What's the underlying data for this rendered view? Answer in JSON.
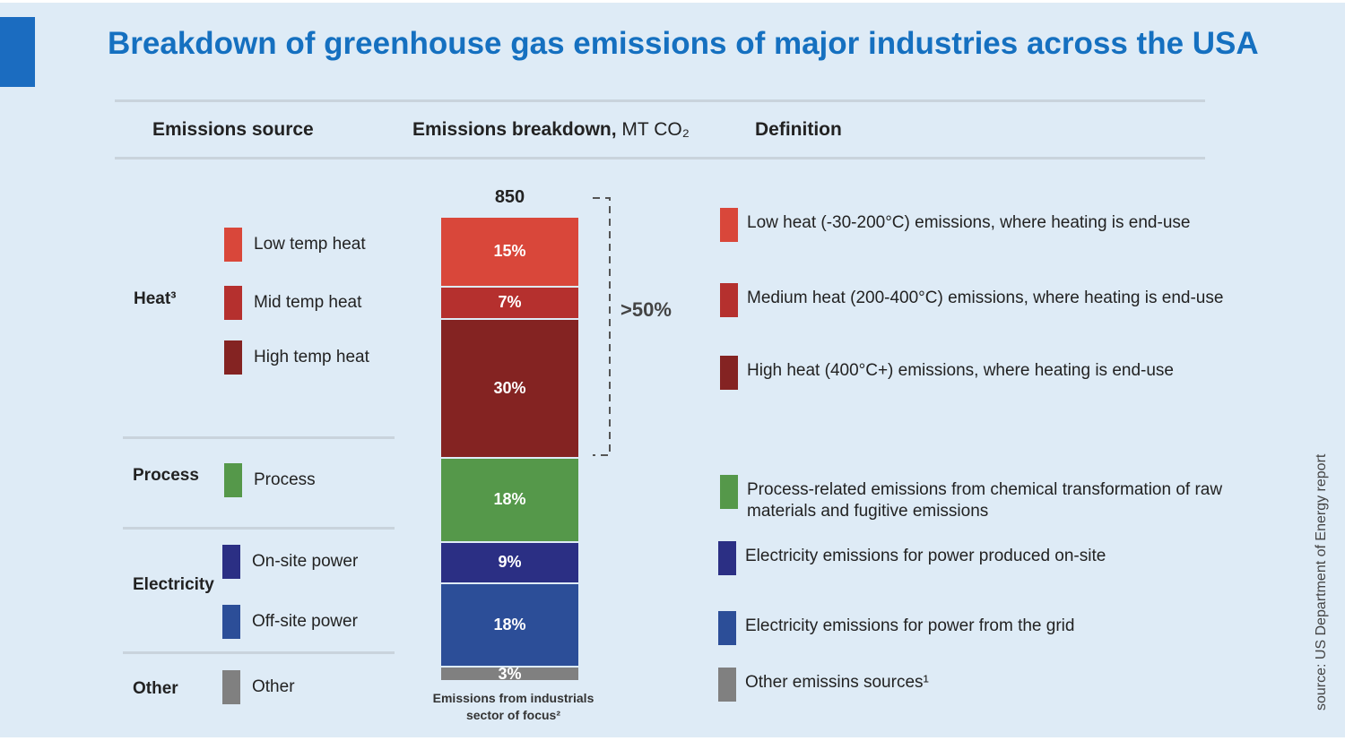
{
  "title": "Breakdown of greenhouse gas emissions of major industries across the USA",
  "headers": {
    "source": "Emissions source",
    "breakdown_bold": "Emissions breakdown,",
    "breakdown_unit": " MT CO₂",
    "definition": "Definition"
  },
  "categories": {
    "heat": "Heat³",
    "process": "Process",
    "electricity": "Electricity",
    "other": "Other"
  },
  "chart_data": {
    "type": "bar",
    "stacked": true,
    "total": "850",
    "unit": "MT CO₂",
    "caption": "Emissions from industrials sector of focus²",
    "bracket_label": ">50%",
    "segments": [
      {
        "name": "Low temp heat",
        "value": 15,
        "label": "15%",
        "color": "#d9473a",
        "definition": "Low heat (-30-200°C) emissions, where heating is end-use"
      },
      {
        "name": "Mid temp heat",
        "value": 7,
        "label": "7%",
        "color": "#b5302e",
        "definition": "Medium heat (200-400°C) emissions, where heating is end-use"
      },
      {
        "name": "High temp heat",
        "value": 30,
        "label": "30%",
        "color": "#842322",
        "definition": "High heat (400°C+) emissions, where heating is end-use"
      },
      {
        "name": "Process",
        "value": 18,
        "label": "18%",
        "color": "#55984a",
        "definition": "Process-related emissions from chemical transformation of raw materials and fugitive emissions"
      },
      {
        "name": "On-site power",
        "value": 9,
        "label": "9%",
        "color": "#2b2f84",
        "definition": "Electricity emissions for power produced on-site"
      },
      {
        "name": "Off-site power",
        "value": 18,
        "label": "18%",
        "color": "#2c4e98",
        "definition": "Electricity emissions for power from the grid"
      },
      {
        "name": "Other",
        "value": 3,
        "label": "3%",
        "color": "#808080",
        "definition": "Other emissins sources¹"
      }
    ]
  },
  "source": "source: US Department of Energy report",
  "colors": {
    "title": "#1570c0",
    "background": "#deebf6"
  }
}
